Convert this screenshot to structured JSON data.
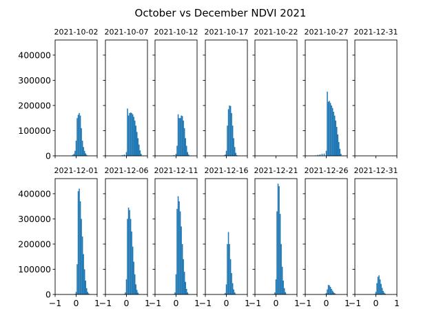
{
  "figure": {
    "suptitle": "October vs December NDVI 2021",
    "bar_color": "#1f77b4"
  },
  "chart_data": {
    "type": "bar",
    "title": "October vs December NDVI 2021",
    "xlim": [
      -1,
      1
    ],
    "ylim": [
      0,
      460000
    ],
    "xticks": [
      -1,
      0,
      1
    ],
    "xtick_labels": [
      "−1",
      "0",
      "1"
    ],
    "yticks": [
      0,
      100000,
      200000,
      300000,
      400000
    ],
    "ytick_labels": [
      "0",
      "100000",
      "200000",
      "300000",
      "400000"
    ],
    "grid": false,
    "rows": [
      {
        "panels": [
          {
            "title": "2021-10-02",
            "x": [
              -0.2,
              -0.15,
              -0.1,
              -0.05,
              0.0,
              0.05,
              0.1,
              0.15,
              0.2,
              0.25,
              0.3,
              0.35,
              0.4,
              0.45,
              0.5
            ],
            "y": [
              2000,
              4000,
              8000,
              20000,
              60000,
              150000,
              163000,
              170000,
              160000,
              110000,
              60000,
              35000,
              20000,
              10000,
              4000
            ]
          },
          {
            "title": "2021-10-07",
            "x": [
              -0.3,
              -0.2,
              -0.1,
              0.0,
              0.05,
              0.1,
              0.15,
              0.2,
              0.25,
              0.3,
              0.35,
              0.4,
              0.45,
              0.5,
              0.55,
              0.6,
              0.65,
              0.7
            ],
            "y": [
              1000,
              3000,
              5000,
              15000,
              188000,
              160000,
              170000,
              172000,
              170000,
              165000,
              155000,
              140000,
              120000,
              95000,
              70000,
              45000,
              22000,
              8000
            ]
          },
          {
            "title": "2021-10-12",
            "x": [
              -0.2,
              -0.1,
              0.0,
              0.05,
              0.1,
              0.15,
              0.2,
              0.25,
              0.3,
              0.35,
              0.4,
              0.45,
              0.5,
              0.55,
              0.6
            ],
            "y": [
              1000,
              3000,
              8000,
              40000,
              165000,
              150000,
              150000,
              160000,
              158000,
              140000,
              110000,
              70000,
              40000,
              15000,
              5000
            ]
          },
          {
            "title": "2021-10-17",
            "x": [
              -0.1,
              -0.05,
              0.0,
              0.05,
              0.1,
              0.15,
              0.2,
              0.25,
              0.3,
              0.35,
              0.4,
              0.45,
              0.5
            ],
            "y": [
              2000,
              5000,
              20000,
              120000,
              185000,
              200000,
              198000,
              170000,
              120000,
              70000,
              35000,
              12000,
              3000
            ]
          },
          {
            "title": "2021-10-22",
            "x": [],
            "y": []
          },
          {
            "title": "2021-10-27",
            "x": [
              -0.5,
              -0.4,
              -0.3,
              -0.2,
              -0.1,
              0.0,
              0.05,
              0.1,
              0.15,
              0.2,
              0.25,
              0.3,
              0.35,
              0.4,
              0.45,
              0.5,
              0.55,
              0.6,
              0.65,
              0.7
            ],
            "y": [
              2000,
              4000,
              6000,
              8000,
              9000,
              20000,
              255000,
              215000,
              218000,
              210000,
              200000,
              190000,
              175000,
              160000,
              140000,
              115000,
              85000,
              55000,
              28000,
              8000
            ]
          },
          {
            "title": "2021-12-31",
            "x": [],
            "y": []
          }
        ]
      },
      {
        "panels": [
          {
            "title": "2021-12-01",
            "x": [
              -0.05,
              0.0,
              0.05,
              0.1,
              0.15,
              0.2,
              0.25,
              0.3,
              0.35,
              0.4,
              0.45,
              0.5,
              0.55,
              0.6,
              0.65
            ],
            "y": [
              2000,
              10000,
              120000,
              410000,
              420000,
              370000,
              300000,
              230000,
              160000,
              100000,
              55000,
              25000,
              10000,
              4000,
              1500
            ]
          },
          {
            "title": "2021-12-06",
            "x": [
              -0.1,
              -0.05,
              0.0,
              0.05,
              0.1,
              0.15,
              0.2,
              0.25,
              0.3,
              0.35,
              0.4,
              0.45,
              0.5,
              0.55,
              0.6
            ],
            "y": [
              2000,
              8000,
              60000,
              300000,
              345000,
              335000,
              300000,
              250000,
              190000,
              130000,
              80000,
              40000,
              18000,
              7000,
              2000
            ]
          },
          {
            "title": "2021-12-11",
            "x": [
              -0.1,
              -0.05,
              0.0,
              0.05,
              0.1,
              0.15,
              0.2,
              0.25,
              0.3,
              0.35,
              0.4,
              0.45,
              0.5,
              0.55,
              0.6
            ],
            "y": [
              2000,
              8000,
              80000,
              340000,
              390000,
              370000,
              330000,
              270000,
              200000,
              140000,
              90000,
              50000,
              22000,
              8000,
              2000
            ]
          },
          {
            "title": "2021-12-16",
            "x": [
              -0.1,
              -0.05,
              0.0,
              0.05,
              0.1,
              0.15,
              0.2,
              0.25,
              0.3,
              0.35,
              0.4,
              0.45
            ],
            "y": [
              2000,
              6000,
              40000,
              200000,
              248000,
              200000,
              140000,
              85000,
              45000,
              20000,
              8000,
              2000
            ]
          },
          {
            "title": "2021-12-21",
            "x": [
              -0.1,
              -0.05,
              0.0,
              0.05,
              0.1,
              0.15,
              0.2,
              0.25,
              0.3,
              0.35,
              0.4,
              0.45,
              0.5
            ],
            "y": [
              2000,
              8000,
              60000,
              330000,
              440000,
              430000,
              320000,
              200000,
              110000,
              55000,
              25000,
              9000,
              2000
            ]
          },
          {
            "title": "2021-12-26",
            "x": [
              -0.1,
              -0.05,
              0.0,
              0.05,
              0.1,
              0.15,
              0.2,
              0.25,
              0.3,
              0.35,
              0.4,
              0.45,
              0.5
            ],
            "y": [
              500,
              2000,
              6000,
              20000,
              38000,
              36000,
              30000,
              22000,
              15000,
              9000,
              5000,
              2000,
              600
            ]
          },
          {
            "title": "2021-12-31",
            "x": [
              -0.1,
              -0.05,
              0.0,
              0.05,
              0.1,
              0.15,
              0.2,
              0.25,
              0.3,
              0.35,
              0.4,
              0.45,
              0.5
            ],
            "y": [
              500,
              2000,
              10000,
              45000,
              70000,
              76000,
              60000,
              42000,
              26000,
              14000,
              7000,
              3000,
              800
            ]
          }
        ]
      }
    ]
  }
}
